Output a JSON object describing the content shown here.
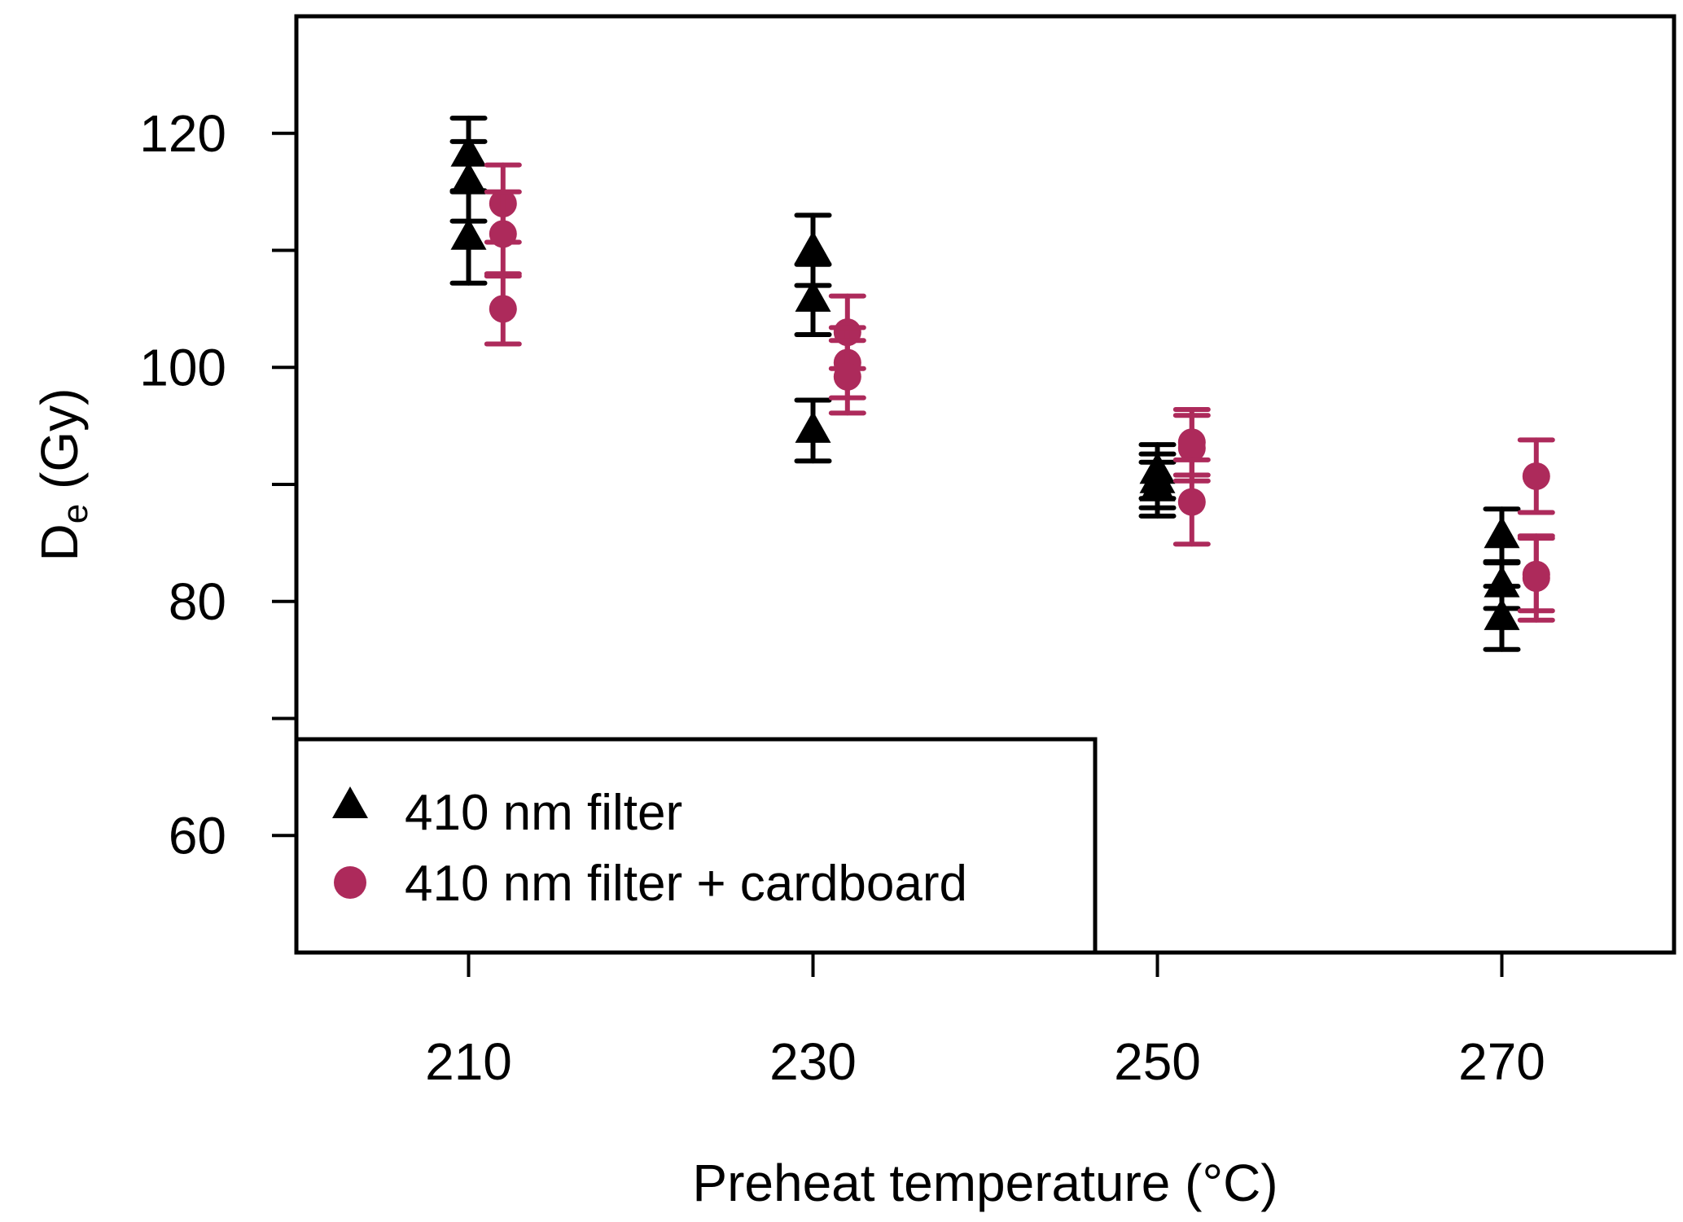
{
  "chart_data": {
    "type": "scatter",
    "title": "",
    "xlabel": "Preheat temperature (°C)",
    "ylabel_main": "D",
    "ylabel_sub": "e",
    "ylabel_unit": " (Gy)",
    "xlim": [
      200,
      280
    ],
    "ylim": [
      50,
      130
    ],
    "x_ticks": [
      210,
      230,
      250,
      270
    ],
    "x_tick_labels": [
      "210",
      "230",
      "250",
      "270"
    ],
    "y_ticks": [
      60,
      70,
      80,
      90,
      100,
      110,
      120
    ],
    "y_tick_labels": [
      "60",
      "",
      "80",
      "",
      "100",
      "",
      "120"
    ],
    "grid": false,
    "legend_position": "bottom-left",
    "series": [
      {
        "name": "410 nm filter",
        "marker": "triangle",
        "color": "#000000",
        "points": [
          {
            "x": 210,
            "y": 118.2,
            "err": 3.1
          },
          {
            "x": 210,
            "y": 115.9,
            "err": 3.4
          },
          {
            "x": 210,
            "y": 111.1,
            "err": 3.9
          },
          {
            "x": 230,
            "y": 110.0,
            "err": 3.0
          },
          {
            "x": 230,
            "y": 105.8,
            "err": 3.0
          },
          {
            "x": 230,
            "y": 94.6,
            "err": 2.6
          },
          {
            "x": 250,
            "y": 91.1,
            "err": 2.3
          },
          {
            "x": 250,
            "y": 90.3,
            "err": 2.3
          },
          {
            "x": 250,
            "y": 89.6,
            "err": 2.3
          },
          {
            "x": 270,
            "y": 85.6,
            "err": 2.3
          },
          {
            "x": 270,
            "y": 81.4,
            "err": 2.0
          },
          {
            "x": 270,
            "y": 78.6,
            "err": 2.7
          }
        ]
      },
      {
        "name": "410 nm filter + cardboard",
        "marker": "circle",
        "color": "#AD2A5B",
        "points": [
          {
            "x": 212,
            "y": 114.0,
            "err": 3.3
          },
          {
            "x": 212,
            "y": 111.4,
            "err": 3.6
          },
          {
            "x": 212,
            "y": 105.0,
            "err": 3.0
          },
          {
            "x": 232,
            "y": 103.0,
            "err": 3.1
          },
          {
            "x": 232,
            "y": 100.4,
            "err": 3.0
          },
          {
            "x": 232,
            "y": 99.2,
            "err": 3.1
          },
          {
            "x": 252,
            "y": 93.6,
            "err": 2.8
          },
          {
            "x": 252,
            "y": 93.1,
            "err": 2.8
          },
          {
            "x": 252,
            "y": 88.5,
            "err": 3.6
          },
          {
            "x": 272,
            "y": 90.7,
            "err": 3.1
          },
          {
            "x": 272,
            "y": 82.3,
            "err": 3.1
          },
          {
            "x": 272,
            "y": 82.0,
            "err": 3.6
          }
        ]
      }
    ]
  }
}
